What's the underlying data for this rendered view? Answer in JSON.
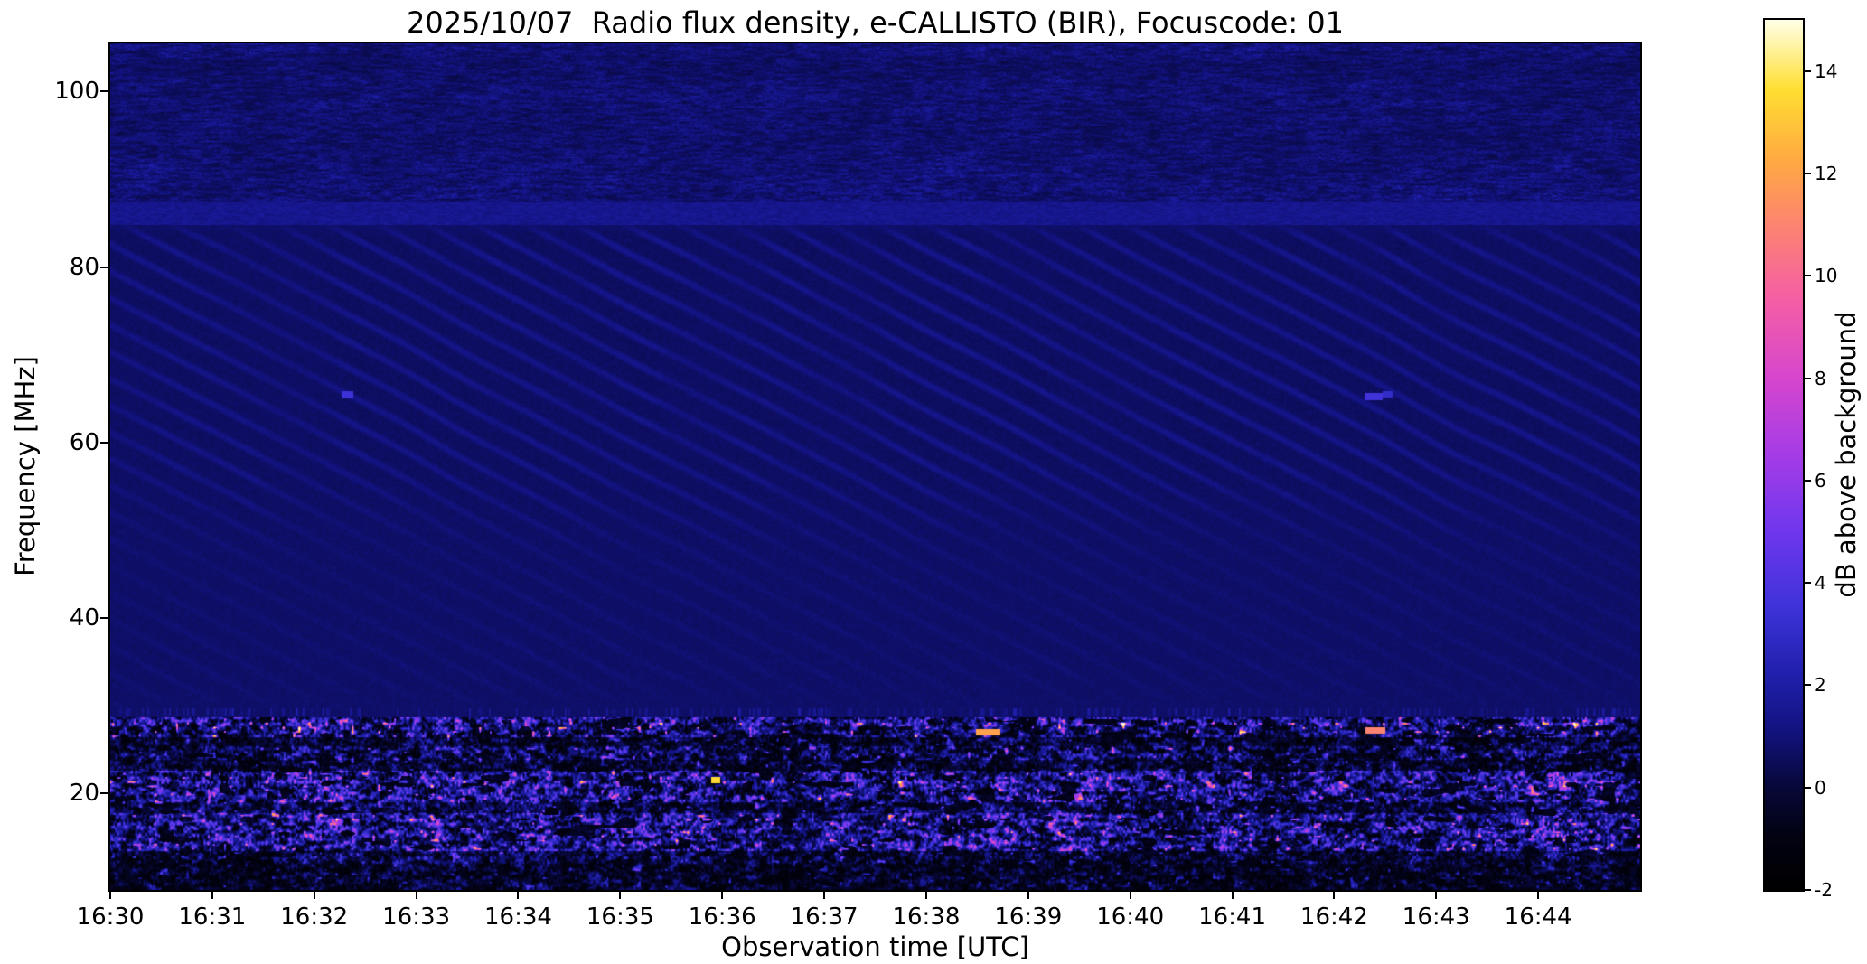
{
  "chart_data": {
    "type": "heatmap",
    "title": "2025/10/07  Radio flux density, e-CALLISTO (BIR), Focuscode: 01",
    "xlabel": "Observation time [UTC]",
    "ylabel": "Frequency [MHz]",
    "x_tick_labels": [
      "16:30",
      "16:31",
      "16:32",
      "16:33",
      "16:34",
      "16:35",
      "16:36",
      "16:37",
      "16:38",
      "16:39",
      "16:40",
      "16:41",
      "16:42",
      "16:43",
      "16:44"
    ],
    "x_range_minutes": [
      0,
      15
    ],
    "x_start_utc": "16:30",
    "x_end_utc": "16:45",
    "y_tick_values": [
      20,
      40,
      60,
      80,
      100
    ],
    "y_range_mhz": [
      9.0,
      105.5
    ],
    "grid": false,
    "legend": "none",
    "background_color": "#ffffff",
    "frame_color": "#000000",
    "colorbar": {
      "label": "dB above background",
      "tick_values": [
        -2,
        0,
        2,
        4,
        6,
        8,
        10,
        12,
        14
      ],
      "value_range": [
        -2,
        15
      ],
      "colormap_stops": [
        [
          0.0,
          0,
          0,
          0
        ],
        [
          0.06,
          2,
          2,
          18
        ],
        [
          0.12,
          8,
          8,
          60
        ],
        [
          0.18,
          18,
          18,
          125
        ],
        [
          0.24,
          30,
          30,
          168
        ],
        [
          0.32,
          60,
          50,
          215
        ],
        [
          0.41,
          110,
          55,
          238
        ],
        [
          0.5,
          165,
          60,
          230
        ],
        [
          0.59,
          215,
          70,
          205
        ],
        [
          0.68,
          245,
          95,
          165
        ],
        [
          0.76,
          252,
          130,
          115
        ],
        [
          0.84,
          255,
          170,
          65
        ],
        [
          0.92,
          255,
          222,
          50
        ],
        [
          1.0,
          255,
          255,
          230
        ]
      ]
    },
    "content_summary": [
      {
        "band_mhz": [
          87.4,
          105.5
        ],
        "description": "mottled broadband receiver noise, dark blue and black speckle in horizontal strips"
      },
      {
        "band_mhz": [
          84.8,
          87.4
        ],
        "description": "brighter blue mottled transition strip"
      },
      {
        "band_mhz": [
          28.7,
          84.8
        ],
        "description": "quiet dark-blue background crossed by regular diagonal interference fringes sloping down to the right, strongest between 55 and 85 MHz; faint dashed speckle line near 29.3 MHz"
      },
      {
        "band_mhz": [
          9.0,
          28.7
        ],
        "description": "strong banded terrestrial RFI: dense bright blue and violet dashes with magenta, orange and yellow peaks separated by black gaps"
      }
    ],
    "render_params": {
      "fringe_period_mhz": 3.05,
      "fringe_drift_mhz_per_min": 6.2,
      "rfi_bands": [
        [
          27.6,
          28.7,
          1.0
        ],
        [
          26.4,
          27.6,
          0.78
        ],
        [
          25.4,
          26.4,
          0.42
        ],
        [
          23.8,
          25.4,
          0.7
        ],
        [
          22.6,
          23.8,
          0.45
        ],
        [
          19.0,
          22.6,
          1.0
        ],
        [
          17.8,
          19.0,
          0.55
        ],
        [
          13.4,
          17.8,
          1.0
        ],
        [
          12.0,
          13.4,
          0.5
        ],
        [
          9.0,
          12.0,
          0.38
        ]
      ],
      "point_features": [
        {
          "f_mhz": 65.4,
          "minute": 2.32,
          "width_min": 0.06,
          "hw_mhz": 0.4,
          "db": 3.4
        },
        {
          "f_mhz": 65.2,
          "minute": 12.38,
          "width_min": 0.09,
          "hw_mhz": 0.4,
          "db": 3.6
        },
        {
          "f_mhz": 65.5,
          "minute": 12.52,
          "width_min": 0.05,
          "hw_mhz": 0.35,
          "db": 3.0
        },
        {
          "f_mhz": 21.5,
          "minute": 5.93,
          "width_min": 0.045,
          "hw_mhz": 0.35,
          "db": 13.5
        },
        {
          "f_mhz": 27.0,
          "minute": 8.6,
          "width_min": 0.12,
          "hw_mhz": 0.35,
          "db": 12.0
        },
        {
          "f_mhz": 27.2,
          "minute": 12.4,
          "width_min": 0.1,
          "hw_mhz": 0.35,
          "db": 11.0
        }
      ]
    }
  }
}
